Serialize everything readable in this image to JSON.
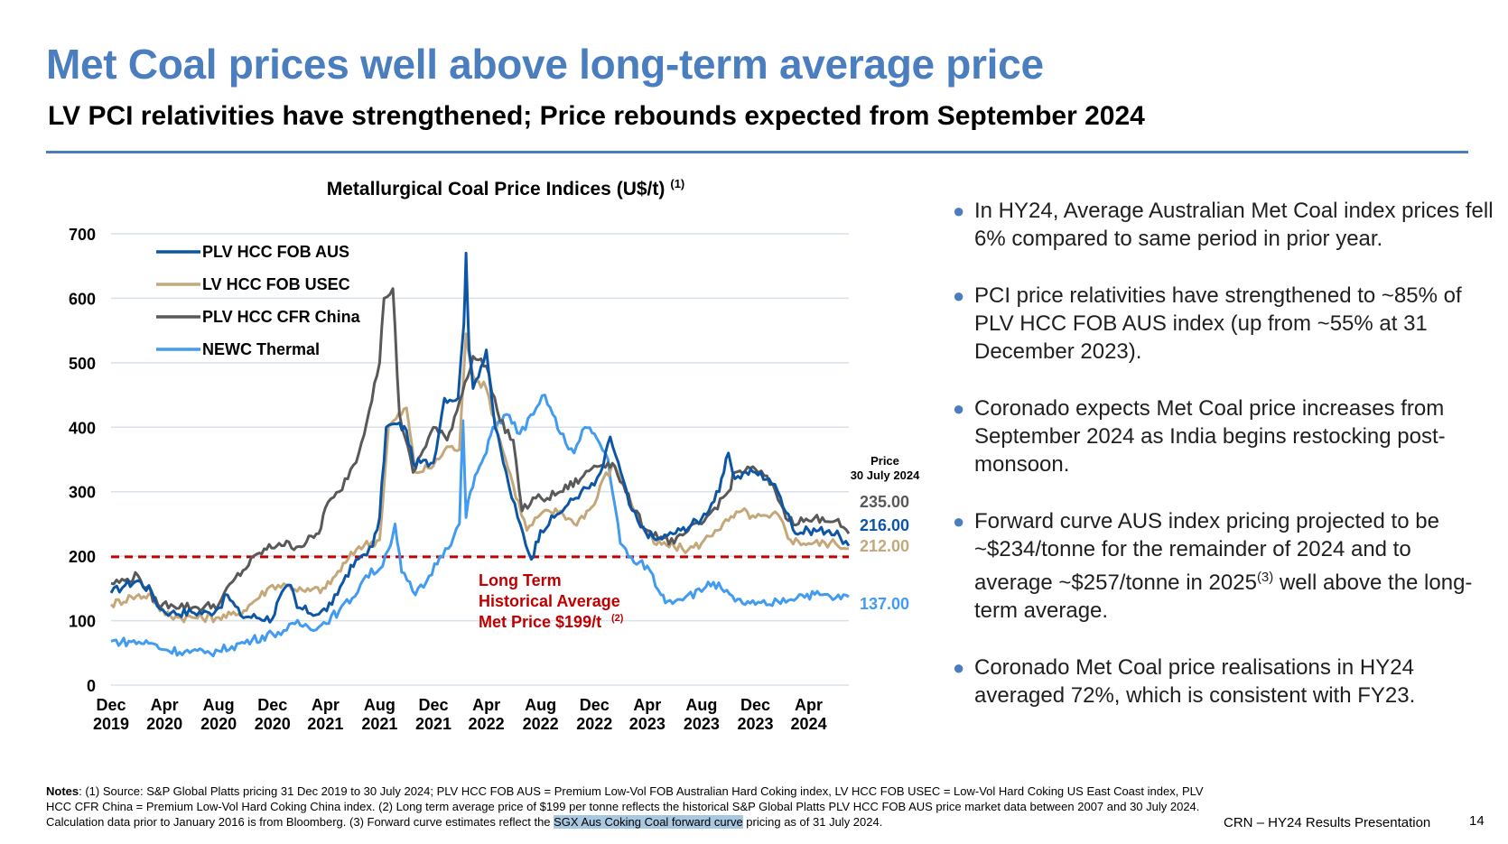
{
  "header": {
    "title": "Met Coal prices well above long-term average price",
    "subtitle": "LV PCI relativities have strengthened; Price rebounds expected from September 2024"
  },
  "chart_data": {
    "type": "line",
    "title": "Metallurgical Coal Price Indices (U$/t)",
    "title_note": "(1)",
    "ylim": [
      0,
      700
    ],
    "y_ticks": [
      "0",
      "100",
      "200",
      "300",
      "400",
      "500",
      "600",
      "700"
    ],
    "x_range": [
      "2019-12-31",
      "2024-07-30"
    ],
    "x_ticks": [
      {
        "month": "Dec",
        "year": "2019",
        "date": "2019-12-31"
      },
      {
        "month": "Apr",
        "year": "2020",
        "date": "2020-04-30"
      },
      {
        "month": "Aug",
        "year": "2020",
        "date": "2020-08-31"
      },
      {
        "month": "Dec",
        "year": "2020",
        "date": "2020-12-31"
      },
      {
        "month": "Apr",
        "year": "2021",
        "date": "2021-04-30"
      },
      {
        "month": "Aug",
        "year": "2021",
        "date": "2021-08-31"
      },
      {
        "month": "Dec",
        "year": "2021",
        "date": "2021-12-31"
      },
      {
        "month": "Apr",
        "year": "2022",
        "date": "2022-04-30"
      },
      {
        "month": "Aug",
        "year": "2022",
        "date": "2022-08-31"
      },
      {
        "month": "Dec",
        "year": "2022",
        "date": "2022-12-31"
      },
      {
        "month": "Apr",
        "year": "2023",
        "date": "2023-04-30"
      },
      {
        "month": "Aug",
        "year": "2023",
        "date": "2023-08-31"
      },
      {
        "month": "Dec",
        "year": "2023",
        "date": "2023-12-31"
      },
      {
        "month": "Apr",
        "year": "2024",
        "date": "2024-04-30"
      }
    ],
    "grid": true,
    "legend_position": "top-left",
    "series": [
      {
        "name": "PLV HCC FOB AUS",
        "color": "#0d56a6",
        "points": [
          [
            "2019-12-31",
            143
          ],
          [
            "2020-02-01",
            155
          ],
          [
            "2020-03-01",
            162
          ],
          [
            "2020-04-01",
            145
          ],
          [
            "2020-04-20",
            118
          ],
          [
            "2020-05-15",
            112
          ],
          [
            "2020-07-01",
            113
          ],
          [
            "2020-08-10",
            112
          ],
          [
            "2020-08-31",
            120
          ],
          [
            "2020-09-20",
            140
          ],
          [
            "2020-10-20",
            108
          ],
          [
            "2020-12-31",
            103
          ],
          [
            "2021-01-15",
            135
          ],
          [
            "2021-02-10",
            155
          ],
          [
            "2021-02-25",
            120
          ],
          [
            "2021-04-15",
            110
          ],
          [
            "2021-05-15",
            125
          ],
          [
            "2021-06-15",
            170
          ],
          [
            "2021-07-20",
            200
          ],
          [
            "2021-08-15",
            215
          ],
          [
            "2021-08-31",
            260
          ],
          [
            "2021-09-15",
            400
          ],
          [
            "2021-10-10",
            405
          ],
          [
            "2021-10-31",
            395
          ],
          [
            "2021-11-15",
            345
          ],
          [
            "2021-12-31",
            345
          ],
          [
            "2022-01-25",
            445
          ],
          [
            "2022-02-25",
            445
          ],
          [
            "2022-03-10",
            560
          ],
          [
            "2022-03-15",
            670
          ],
          [
            "2022-03-22",
            520
          ],
          [
            "2022-03-31",
            460
          ],
          [
            "2022-04-30",
            520
          ],
          [
            "2022-05-20",
            400
          ],
          [
            "2022-06-20",
            310
          ],
          [
            "2022-07-10",
            260
          ],
          [
            "2022-08-10",
            195
          ],
          [
            "2022-08-31",
            240
          ],
          [
            "2022-10-01",
            260
          ],
          [
            "2022-11-01",
            280
          ],
          [
            "2022-12-01",
            300
          ],
          [
            "2022-12-31",
            310
          ],
          [
            "2023-01-20",
            340
          ],
          [
            "2023-02-05",
            385
          ],
          [
            "2023-03-01",
            330
          ],
          [
            "2023-03-20",
            280
          ],
          [
            "2023-04-15",
            245
          ],
          [
            "2023-05-20",
            225
          ],
          [
            "2023-06-15",
            232
          ],
          [
            "2023-07-15",
            240
          ],
          [
            "2023-08-31",
            258
          ],
          [
            "2023-10-10",
            300
          ],
          [
            "2023-10-31",
            360
          ],
          [
            "2023-11-15",
            320
          ],
          [
            "2023-12-10",
            330
          ],
          [
            "2023-12-31",
            330
          ],
          [
            "2024-01-31",
            320
          ],
          [
            "2024-02-20",
            300
          ],
          [
            "2024-03-15",
            265
          ],
          [
            "2024-03-31",
            235
          ],
          [
            "2024-04-30",
            240
          ],
          [
            "2024-06-15",
            240
          ],
          [
            "2024-07-10",
            230
          ],
          [
            "2024-07-30",
            216
          ]
        ]
      },
      {
        "name": "LV HCC FOB USEC",
        "color": "#c4a87a",
        "points": [
          [
            "2019-12-31",
            125
          ],
          [
            "2020-02-15",
            137
          ],
          [
            "2020-03-31",
            140
          ],
          [
            "2020-04-20",
            115
          ],
          [
            "2020-06-01",
            105
          ],
          [
            "2020-08-31",
            105
          ],
          [
            "2020-10-15",
            110
          ],
          [
            "2020-12-31",
            155
          ],
          [
            "2021-02-01",
            155
          ],
          [
            "2021-03-15",
            145
          ],
          [
            "2021-04-30",
            150
          ],
          [
            "2021-06-15",
            190
          ],
          [
            "2021-07-15",
            215
          ],
          [
            "2021-08-31",
            225
          ],
          [
            "2021-09-20",
            400
          ],
          [
            "2021-10-31",
            430
          ],
          [
            "2021-11-20",
            330
          ],
          [
            "2021-12-31",
            340
          ],
          [
            "2022-01-31",
            370
          ],
          [
            "2022-02-28",
            365
          ],
          [
            "2022-03-15",
            545
          ],
          [
            "2022-03-31",
            480
          ],
          [
            "2022-04-30",
            460
          ],
          [
            "2022-05-31",
            380
          ],
          [
            "2022-06-30",
            310
          ],
          [
            "2022-07-31",
            240
          ],
          [
            "2022-08-31",
            265
          ],
          [
            "2022-10-15",
            270
          ],
          [
            "2022-11-15",
            250
          ],
          [
            "2022-12-31",
            280
          ],
          [
            "2023-01-20",
            320
          ],
          [
            "2023-02-15",
            340
          ],
          [
            "2023-03-15",
            300
          ],
          [
            "2023-04-15",
            250
          ],
          [
            "2023-05-15",
            220
          ],
          [
            "2023-06-30",
            215
          ],
          [
            "2023-08-01",
            210
          ],
          [
            "2023-08-31",
            220
          ],
          [
            "2023-10-01",
            240
          ],
          [
            "2023-10-31",
            255
          ],
          [
            "2023-11-30",
            270
          ],
          [
            "2023-12-31",
            260
          ],
          [
            "2024-02-01",
            260
          ],
          [
            "2024-02-20",
            265
          ],
          [
            "2024-03-20",
            225
          ],
          [
            "2024-04-30",
            220
          ],
          [
            "2024-06-30",
            220
          ],
          [
            "2024-07-30",
            212
          ]
        ]
      },
      {
        "name": "PLV HCC CFR China",
        "color": "#595959",
        "points": [
          [
            "2019-12-31",
            158
          ],
          [
            "2020-01-31",
            162
          ],
          [
            "2020-03-01",
            170
          ],
          [
            "2020-04-15",
            125
          ],
          [
            "2020-05-15",
            125
          ],
          [
            "2020-07-15",
            120
          ],
          [
            "2020-08-31",
            125
          ],
          [
            "2020-10-01",
            160
          ],
          [
            "2020-12-01",
            205
          ],
          [
            "2021-01-15",
            220
          ],
          [
            "2021-03-01",
            215
          ],
          [
            "2021-04-15",
            235
          ],
          [
            "2021-04-30",
            275
          ],
          [
            "2021-06-01",
            300
          ],
          [
            "2021-07-15",
            360
          ],
          [
            "2021-08-31",
            500
          ],
          [
            "2021-09-10",
            600
          ],
          [
            "2021-09-30",
            615
          ],
          [
            "2021-10-15",
            420
          ],
          [
            "2021-11-15",
            330
          ],
          [
            "2021-12-31",
            400
          ],
          [
            "2022-01-31",
            380
          ],
          [
            "2022-02-28",
            440
          ],
          [
            "2022-03-31",
            510
          ],
          [
            "2022-04-30",
            495
          ],
          [
            "2022-05-31",
            410
          ],
          [
            "2022-06-30",
            380
          ],
          [
            "2022-07-20",
            270
          ],
          [
            "2022-08-20",
            290
          ],
          [
            "2022-09-15",
            290
          ],
          [
            "2022-10-15",
            300
          ],
          [
            "2022-11-30",
            320
          ],
          [
            "2022-12-31",
            340
          ],
          [
            "2023-01-31",
            345
          ],
          [
            "2023-02-15",
            340
          ],
          [
            "2023-03-31",
            270
          ],
          [
            "2023-04-30",
            240
          ],
          [
            "2023-05-31",
            230
          ],
          [
            "2023-06-30",
            220
          ],
          [
            "2023-08-01",
            240
          ],
          [
            "2023-08-31",
            250
          ],
          [
            "2023-09-30",
            275
          ],
          [
            "2023-10-31",
            300
          ],
          [
            "2023-11-15",
            330
          ],
          [
            "2023-12-31",
            335
          ],
          [
            "2024-01-20",
            325
          ],
          [
            "2024-02-15",
            300
          ],
          [
            "2024-03-15",
            255
          ],
          [
            "2024-04-30",
            255
          ],
          [
            "2024-05-31",
            260
          ],
          [
            "2024-06-30",
            255
          ],
          [
            "2024-07-30",
            235
          ]
        ]
      },
      {
        "name": "NEWC Thermal",
        "color": "#419bf0",
        "points": [
          [
            "2019-12-31",
            68
          ],
          [
            "2020-02-15",
            67
          ],
          [
            "2020-03-31",
            65
          ],
          [
            "2020-04-30",
            55
          ],
          [
            "2020-06-15",
            52
          ],
          [
            "2020-07-31",
            50
          ],
          [
            "2020-08-31",
            53
          ],
          [
            "2020-09-30",
            60
          ],
          [
            "2020-11-15",
            70
          ],
          [
            "2020-12-31",
            80
          ],
          [
            "2021-02-01",
            85
          ],
          [
            "2021-02-20",
            95
          ],
          [
            "2021-04-15",
            90
          ],
          [
            "2021-05-31",
            115
          ],
          [
            "2021-06-30",
            135
          ],
          [
            "2021-07-31",
            170
          ],
          [
            "2021-08-31",
            180
          ],
          [
            "2021-09-20",
            210
          ],
          [
            "2021-10-05",
            250
          ],
          [
            "2021-10-20",
            175
          ],
          [
            "2021-11-20",
            140
          ],
          [
            "2021-12-15",
            160
          ],
          [
            "2022-01-15",
            200
          ],
          [
            "2022-02-15",
            230
          ],
          [
            "2022-02-28",
            250
          ],
          [
            "2022-03-08",
            410
          ],
          [
            "2022-03-15",
            260
          ],
          [
            "2022-03-25",
            300
          ],
          [
            "2022-04-15",
            340
          ],
          [
            "2022-04-30",
            360
          ],
          [
            "2022-05-15",
            400
          ],
          [
            "2022-06-15",
            420
          ],
          [
            "2022-07-15",
            390
          ],
          [
            "2022-08-15",
            420
          ],
          [
            "2022-09-10",
            450
          ],
          [
            "2022-10-15",
            390
          ],
          [
            "2022-11-15",
            360
          ],
          [
            "2022-12-10",
            400
          ],
          [
            "2022-12-31",
            390
          ],
          [
            "2023-01-31",
            350
          ],
          [
            "2023-02-28",
            220
          ],
          [
            "2023-03-31",
            190
          ],
          [
            "2023-04-30",
            185
          ],
          [
            "2023-05-31",
            140
          ],
          [
            "2023-06-15",
            130
          ],
          [
            "2023-07-31",
            140
          ],
          [
            "2023-08-31",
            145
          ],
          [
            "2023-09-15",
            160
          ],
          [
            "2023-10-15",
            150
          ],
          [
            "2023-11-15",
            130
          ],
          [
            "2023-12-31",
            125
          ],
          [
            "2024-02-01",
            125
          ],
          [
            "2024-02-20",
            130
          ],
          [
            "2024-04-15",
            140
          ],
          [
            "2024-05-31",
            140
          ],
          [
            "2024-06-30",
            135
          ],
          [
            "2024-07-30",
            137
          ]
        ]
      }
    ],
    "reference_line": {
      "value": 199,
      "color": "#c00000"
    },
    "annotation": {
      "lines": [
        "Long Term",
        "Historical Average",
        "Met Price $199/t"
      ],
      "note": "(2)",
      "color": "#c00000"
    },
    "end_label_header": [
      "Price",
      "30 July 2024"
    ],
    "end_labels": [
      {
        "text": "235.00",
        "value": 235,
        "color": "#595959"
      },
      {
        "text": "216.00",
        "value": 216,
        "color": "#0d56a6"
      },
      {
        "text": "212.00",
        "value": 212,
        "color": "#c4a87a"
      },
      {
        "text": "137.00",
        "value": 137,
        "color": "#419bf0"
      }
    ]
  },
  "bullets": {
    "b1": "In HY24, Average Australian Met Coal index prices fell 6% compared to same period in prior year.",
    "b2": "PCI price relativities have strengthened to ~85% of PLV HCC FOB AUS index (up from ~55% at 31 December 2023).",
    "b3": "Coronado expects Met Coal price increases from September 2024 as India begins restocking post-monsoon.",
    "b4_main": "Forward curve AUS index pricing projected to be  ~$234/tonne for the remainder of 2024 and to average ~$257/tonne in 2025",
    "b4_sup": "(3)",
    "b4_end": " well above the long-term average.",
    "b5": "Coronado Met Coal price realisations in HY24 averaged 72%, which is consistent with FY23."
  },
  "notes": {
    "label": "Notes",
    "text_a": ": (1) Source: S&P Global Platts pricing 31 Dec 2019 to 30 July 2024; PLV HCC FOB AUS = Premium Low-Vol FOB Australian Hard Coking index, LV HCC FOB USEC = Low-Vol Hard Coking US East Coast index, PLV HCC CFR China = Premium Low-Vol Hard Coking China index. (2) Long term average price of $199 per tonne reflects the historical S&P Global Platts PLV HCC FOB AUS price market data between 2007 and 30 July 2024. Calculation data prior to January 2016 is from Bloomberg. (3) Forward curve estimates reflect the ",
    "highlight": "SGX Aus Coking Coal forward curve",
    "text_b": " pricing as of 31 July 2024."
  },
  "footer": {
    "text": "CRN – HY24 Results Presentation",
    "page": "14"
  },
  "theme": {
    "title_color": "#4a7ebf",
    "bullet_color": "#4a7ebf",
    "grid_color": "#d9e1ea"
  }
}
